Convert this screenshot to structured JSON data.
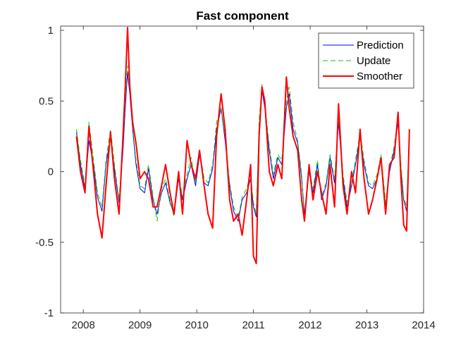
{
  "chart_data": {
    "type": "line",
    "title": "Fast component",
    "xlabel": "",
    "ylabel": "",
    "xlim": [
      2007.6,
      2014.0
    ],
    "ylim": [
      -1,
      1.03
    ],
    "xticks": [
      2008,
      2009,
      2010,
      2011,
      2012,
      2013,
      2014
    ],
    "xtick_labels": [
      "2008",
      "2009",
      "2010",
      "2011",
      "2012",
      "2013",
      "2014"
    ],
    "yticks": [
      -1,
      -0.5,
      0,
      0.5,
      1
    ],
    "ytick_labels": [
      "-1",
      "-0.5",
      "0",
      "0.5",
      "1"
    ],
    "grid": false,
    "legend_position": "top-right",
    "series": [
      {
        "name": "Prediction",
        "color": "#0000ff",
        "style": "solid",
        "x": [
          2007.88,
          2007.95,
          2008.03,
          2008.1,
          2008.18,
          2008.25,
          2008.33,
          2008.4,
          2008.48,
          2008.55,
          2008.63,
          2008.7,
          2008.74,
          2008.78,
          2008.82,
          2008.87,
          2008.93,
          2009.0,
          2009.08,
          2009.15,
          2009.23,
          2009.3,
          2009.38,
          2009.45,
          2009.53,
          2009.6,
          2009.68,
          2009.75,
          2009.83,
          2009.9,
          2009.98,
          2010.05,
          2010.13,
          2010.2,
          2010.28,
          2010.35,
          2010.43,
          2010.5,
          2010.58,
          2010.65,
          2010.73,
          2010.8,
          2010.88,
          2010.95,
          2011.0,
          2011.05,
          2011.1,
          2011.15,
          2011.2,
          2011.28,
          2011.35,
          2011.43,
          2011.5,
          2011.58,
          2011.63,
          2011.7,
          2011.78,
          2011.85,
          2011.9,
          2011.98,
          2012.05,
          2012.13,
          2012.2,
          2012.28,
          2012.35,
          2012.43,
          2012.5,
          2012.58,
          2012.65,
          2012.73,
          2012.8,
          2012.88,
          2012.95,
          2013.03,
          2013.1,
          2013.18,
          2013.25,
          2013.33,
          2013.4,
          2013.48,
          2013.55,
          2013.6,
          2013.65,
          2013.7,
          2013.75
        ],
        "values": [
          0.28,
          0.05,
          -0.12,
          0.22,
          0.05,
          -0.18,
          -0.28,
          0.05,
          0.25,
          0.02,
          -0.22,
          0.15,
          0.45,
          0.7,
          0.55,
          0.3,
          0.05,
          -0.12,
          -0.15,
          0.02,
          -0.2,
          -0.3,
          -0.15,
          -0.08,
          -0.22,
          -0.3,
          -0.05,
          -0.2,
          -0.05,
          0.05,
          -0.1,
          0.12,
          -0.08,
          -0.1,
          0.02,
          0.3,
          0.45,
          0.22,
          -0.1,
          -0.28,
          -0.35,
          -0.2,
          -0.15,
          -0.05,
          -0.25,
          -0.32,
          0.3,
          0.58,
          0.45,
          0.15,
          -0.05,
          0.1,
          0.05,
          0.45,
          0.55,
          0.3,
          0.2,
          -0.05,
          -0.3,
          0.0,
          -0.15,
          0.05,
          -0.2,
          -0.1,
          0.1,
          -0.08,
          0.35,
          -0.05,
          -0.25,
          -0.1,
          0.05,
          0.25,
          0.05,
          -0.1,
          -0.12,
          -0.05,
          0.1,
          -0.25,
          0.0,
          0.15,
          0.35,
          0.02,
          -0.2,
          -0.28,
          0.25
        ]
      },
      {
        "name": "Update",
        "color": "#00cc00",
        "style": "dashed",
        "x": [
          2007.88,
          2007.95,
          2008.03,
          2008.1,
          2008.18,
          2008.25,
          2008.33,
          2008.4,
          2008.48,
          2008.55,
          2008.63,
          2008.7,
          2008.74,
          2008.78,
          2008.82,
          2008.87,
          2008.93,
          2009.0,
          2009.08,
          2009.15,
          2009.23,
          2009.3,
          2009.38,
          2009.45,
          2009.53,
          2009.6,
          2009.68,
          2009.75,
          2009.83,
          2009.9,
          2009.98,
          2010.05,
          2010.13,
          2010.2,
          2010.28,
          2010.35,
          2010.43,
          2010.5,
          2010.58,
          2010.65,
          2010.73,
          2010.8,
          2010.88,
          2010.95,
          2011.0,
          2011.05,
          2011.1,
          2011.15,
          2011.2,
          2011.28,
          2011.35,
          2011.43,
          2011.5,
          2011.58,
          2011.63,
          2011.7,
          2011.78,
          2011.85,
          2011.9,
          2011.98,
          2012.05,
          2012.13,
          2012.2,
          2012.28,
          2012.35,
          2012.43,
          2012.5,
          2012.58,
          2012.65,
          2012.73,
          2012.8,
          2012.88,
          2012.95,
          2013.03,
          2013.1,
          2013.18,
          2013.25,
          2013.33,
          2013.4,
          2013.48,
          2013.55,
          2013.6,
          2013.65,
          2013.7,
          2013.75
        ],
        "values": [
          0.3,
          0.08,
          -0.1,
          0.35,
          0.08,
          -0.15,
          -0.25,
          0.08,
          0.3,
          0.05,
          -0.2,
          0.2,
          0.5,
          0.75,
          0.6,
          0.32,
          0.08,
          -0.1,
          -0.12,
          0.05,
          -0.18,
          -0.35,
          -0.12,
          -0.05,
          -0.2,
          -0.32,
          -0.02,
          -0.18,
          -0.02,
          0.1,
          -0.08,
          0.15,
          -0.05,
          -0.08,
          0.05,
          0.35,
          0.45,
          0.25,
          -0.08,
          -0.25,
          -0.33,
          -0.18,
          -0.12,
          -0.02,
          -0.22,
          -0.3,
          0.35,
          0.62,
          0.48,
          0.18,
          -0.02,
          0.12,
          0.08,
          0.5,
          0.6,
          0.35,
          0.22,
          -0.02,
          -0.35,
          0.02,
          -0.12,
          0.08,
          -0.18,
          -0.08,
          0.12,
          -0.05,
          0.38,
          -0.02,
          -0.22,
          -0.08,
          0.08,
          0.28,
          0.08,
          -0.08,
          -0.1,
          -0.02,
          0.12,
          -0.22,
          0.02,
          0.18,
          0.38,
          0.05,
          -0.18,
          -0.25,
          0.28
        ]
      },
      {
        "name": "Smoother",
        "color": "#ff0000",
        "style": "solid",
        "x": [
          2007.88,
          2007.95,
          2008.03,
          2008.1,
          2008.18,
          2008.25,
          2008.33,
          2008.4,
          2008.48,
          2008.55,
          2008.63,
          2008.7,
          2008.74,
          2008.78,
          2008.82,
          2008.87,
          2008.93,
          2009.0,
          2009.08,
          2009.15,
          2009.23,
          2009.3,
          2009.38,
          2009.45,
          2009.53,
          2009.6,
          2009.68,
          2009.75,
          2009.83,
          2009.9,
          2009.98,
          2010.05,
          2010.13,
          2010.2,
          2010.28,
          2010.35,
          2010.43,
          2010.5,
          2010.58,
          2010.65,
          2010.73,
          2010.8,
          2010.88,
          2010.95,
          2011.0,
          2011.05,
          2011.1,
          2011.15,
          2011.2,
          2011.28,
          2011.35,
          2011.43,
          2011.5,
          2011.58,
          2011.63,
          2011.7,
          2011.78,
          2011.85,
          2011.9,
          2011.98,
          2012.05,
          2012.13,
          2012.2,
          2012.28,
          2012.35,
          2012.43,
          2012.5,
          2012.58,
          2012.65,
          2012.73,
          2012.8,
          2012.88,
          2012.95,
          2013.03,
          2013.1,
          2013.18,
          2013.25,
          2013.33,
          2013.4,
          2013.48,
          2013.55,
          2013.6,
          2013.65,
          2013.7,
          2013.75
        ],
        "values": [
          0.25,
          0.0,
          -0.15,
          0.32,
          0.0,
          -0.3,
          -0.47,
          -0.1,
          0.28,
          -0.05,
          -0.3,
          0.25,
          0.6,
          1.02,
          0.6,
          0.35,
          0.2,
          -0.05,
          0.0,
          -0.05,
          -0.25,
          -0.25,
          -0.1,
          0.05,
          -0.15,
          -0.3,
          0.0,
          -0.3,
          0.22,
          0.05,
          -0.05,
          0.15,
          -0.1,
          -0.3,
          -0.4,
          0.25,
          0.55,
          0.3,
          -0.2,
          -0.35,
          -0.3,
          -0.45,
          -0.2,
          0.05,
          -0.6,
          -0.65,
          0.25,
          0.6,
          0.5,
          0.0,
          -0.1,
          0.05,
          -0.05,
          0.67,
          0.45,
          0.25,
          0.15,
          -0.2,
          -0.35,
          0.05,
          -0.2,
          0.0,
          -0.15,
          -0.3,
          0.05,
          -0.25,
          0.48,
          -0.1,
          -0.3,
          0.0,
          -0.15,
          0.3,
          -0.05,
          -0.3,
          -0.2,
          -0.05,
          0.1,
          -0.3,
          0.05,
          0.1,
          0.42,
          -0.05,
          -0.38,
          -0.42,
          0.3
        ]
      }
    ]
  }
}
